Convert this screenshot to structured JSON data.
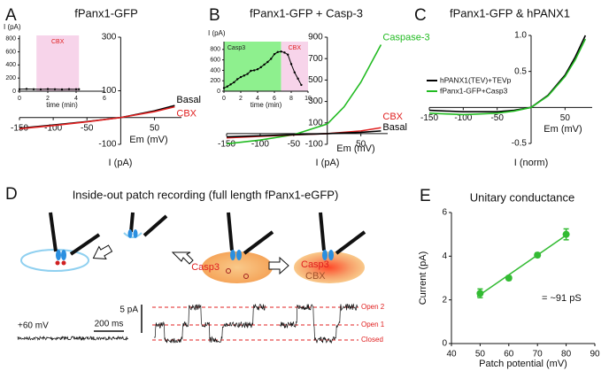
{
  "chart_data": [
    {
      "type": "line",
      "panel": "A",
      "title": "fPanx1-GFP",
      "xlabel": "Em (mV)",
      "ylabel": "I (pA)",
      "xlim": [
        -150,
        90
      ],
      "ylim": [
        -100,
        300
      ],
      "xticks": [
        -150,
        -100,
        -50,
        50
      ],
      "yticks": [
        -100,
        100,
        300
      ],
      "x": [
        -150,
        -100,
        -50,
        0,
        50,
        80
      ],
      "series": [
        {
          "name": "Basal",
          "color": "#000000",
          "values": [
            -40,
            -28,
            -15,
            0,
            25,
            45
          ]
        },
        {
          "name": "CBX",
          "color": "#e02020",
          "values": [
            -42,
            -30,
            -16,
            0,
            22,
            40
          ]
        }
      ],
      "inset": {
        "type": "line",
        "ylabel": "I (pA)",
        "xlabel": "time (min)",
        "xlim": [
          0,
          6
        ],
        "ylim": [
          0,
          850
        ],
        "xticks": [
          0,
          2,
          4,
          6
        ],
        "yticks": [
          0,
          200,
          400,
          600,
          800
        ],
        "regions": [
          {
            "label": "CBX",
            "start": 1.2,
            "end": 4.2,
            "color": "#f7d4ea",
            "text_color": "#e02020"
          }
        ],
        "x": [
          0,
          0.5,
          1,
          1.5,
          2,
          2.5,
          3,
          3.5,
          4,
          4.2
        ],
        "series": [
          {
            "color": "#000000",
            "values": [
              30,
              34,
              30,
              28,
              32,
              30,
              27,
              31,
              29,
              30
            ]
          }
        ]
      }
    },
    {
      "type": "line",
      "panel": "B",
      "title": "fPanx1-GFP + Casp-3",
      "xlabel": "Em (mV)",
      "ylabel": "I (pA)",
      "xlim": [
        -150,
        90
      ],
      "ylim": [
        -100,
        900
      ],
      "xticks": [
        -150,
        -100,
        -50,
        50
      ],
      "yticks": [
        -100,
        100,
        300,
        500,
        700,
        900
      ],
      "x": [
        -150,
        -100,
        -50,
        0,
        25,
        50,
        80
      ],
      "series": [
        {
          "name": "Caspase-3",
          "color": "#22bb22",
          "values": [
            -95,
            -60,
            -10,
            90,
            250,
            480,
            830
          ]
        },
        {
          "name": "CBX",
          "color": "#e02020",
          "values": [
            -40,
            -25,
            -12,
            0,
            12,
            25,
            55
          ]
        },
        {
          "name": "Basal",
          "color": "#000000",
          "values": [
            -30,
            -20,
            -10,
            0,
            6,
            12,
            25
          ]
        }
      ],
      "inset": {
        "type": "line",
        "ylabel": "I (pA)",
        "xlabel": "time (min)",
        "xlim": [
          0,
          10
        ],
        "ylim": [
          0,
          950
        ],
        "xticks": [
          0,
          2,
          4,
          6,
          8,
          10
        ],
        "yticks": [
          0,
          200,
          400,
          600,
          800
        ],
        "regions": [
          {
            "label": "Casp3",
            "start": 0,
            "end": 6.8,
            "color": "#8ef08e",
            "text_color": "#222222"
          },
          {
            "label": "CBX",
            "start": 6.8,
            "end": 10,
            "color": "#f7d4ea",
            "text_color": "#e02020"
          }
        ],
        "x": [
          0,
          0.4,
          0.8,
          1.2,
          1.6,
          2,
          2.4,
          2.8,
          3.2,
          3.6,
          4,
          4.4,
          4.8,
          5.2,
          5.6,
          6,
          6.4,
          6.8,
          7.2,
          7.6,
          8,
          8.4,
          8.8,
          9.2
        ],
        "series": [
          {
            "color": "#000000",
            "values": [
              60,
              90,
              130,
              170,
              230,
              270,
              300,
              330,
              390,
              400,
              420,
              460,
              510,
              560,
              620,
              710,
              750,
              760,
              740,
              700,
              520,
              360,
              240,
              120
            ]
          }
        ]
      }
    },
    {
      "type": "line",
      "panel": "C",
      "title": "fPanx1-GFP & hPANX1",
      "xlabel": "Em (mV)",
      "ylabel": "I (norm)",
      "xlim": [
        -150,
        90
      ],
      "ylim": [
        -0.5,
        1.0
      ],
      "xticks": [
        -150,
        -100,
        -50,
        50
      ],
      "yticks": [
        -0.5,
        0.5,
        {
          "value": 1,
          "label": "1.0"
        }
      ],
      "legend": "center-left",
      "x": [
        -150,
        -125,
        -100,
        -75,
        -50,
        -25,
        0,
        25,
        50,
        65,
        80
      ],
      "series": [
        {
          "name": "hPANX1(TEV)+TEVp",
          "color": "#000000",
          "values": [
            -0.04,
            -0.05,
            -0.06,
            -0.06,
            -0.06,
            -0.04,
            0,
            0.17,
            0.45,
            0.7,
            1.0
          ]
        },
        {
          "name": "fPanx1-GFP+Casp3",
          "color": "#22bb22",
          "values": [
            -0.08,
            -0.09,
            -0.1,
            -0.09,
            -0.08,
            -0.05,
            0,
            0.16,
            0.43,
            0.66,
            0.95
          ]
        }
      ]
    },
    {
      "type": "scatter",
      "panel": "E",
      "title": "Unitary conductance",
      "xlabel": "Patch potential (mV)",
      "ylabel": "Current (pA)",
      "xlim": [
        40,
        90
      ],
      "ylim": [
        0,
        6
      ],
      "xticks": [
        40,
        50,
        60,
        70,
        80,
        90
      ],
      "yticks": [
        0,
        2,
        4,
        6
      ],
      "x": [
        50,
        60,
        70,
        80
      ],
      "annotation": "= ~91 pS",
      "series": [
        {
          "color": "#33bb33",
          "values": [
            2.3,
            3.0,
            4.05,
            5.0
          ],
          "errors": [
            0.2,
            0.1,
            0.1,
            0.25
          ]
        }
      ],
      "fit": {
        "x": [
          49,
          81
        ],
        "values": [
          2.15,
          5.05
        ]
      }
    }
  ],
  "diagram": {
    "panel": "D",
    "title": "Inside-out patch recording (full length fPanx1-eGFP)",
    "steps": [
      "Casp3",
      "Casp3",
      "CBX"
    ],
    "voltage": "+60 mV",
    "time_scale": "200 ms",
    "current_scale": "5 pA",
    "levels": [
      "Open 2",
      "Open 1",
      "Closed"
    ]
  }
}
